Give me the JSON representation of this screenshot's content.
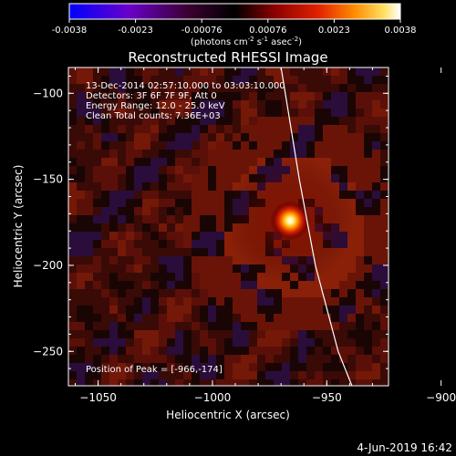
{
  "chart_data": {
    "type": "heatmap",
    "title": "Reconstructed RHESSI Image",
    "xlabel": "Heliocentric X (arcsec)",
    "ylabel": "Heliocentric Y (arcsec)",
    "xlim": [
      -1063,
      -923
    ],
    "ylim": [
      -270,
      -85
    ],
    "xticks": [
      -1050,
      -1000,
      -950,
      -900
    ],
    "yticks": [
      -100,
      -150,
      -200,
      -250
    ],
    "colorbar": {
      "ticks": [
        "-0.0038",
        "-0.0023",
        "-0.00076",
        "0.00076",
        "0.0023",
        "0.0038"
      ],
      "units": "(photons cm",
      "units_exp1": "-2",
      "units_mid": " s",
      "units_exp2": "-1",
      "units_mid2": " asec",
      "units_exp3": "-2",
      "units_end": ")",
      "range": [
        -0.0038,
        0.0038
      ]
    },
    "annotations": [
      "13-Dec-2014 02:57:10.000 to 03:03:10.000",
      "Detectors: 3F 6F 7F 9F, Att 0",
      "Energy Range: 12.0 - 25.0 keV",
      "Clean    Total counts: 7.36E+03"
    ],
    "peak_label": "Position of Peak = [-966,-174]",
    "peak": {
      "x": -966,
      "y": -174,
      "value": 0.0038
    },
    "limb": [
      [
        -970,
        -85
      ],
      [
        -962,
        -150
      ],
      [
        -955,
        -200
      ],
      [
        -945,
        -250
      ],
      [
        -939,
        -270
      ]
    ],
    "grid": false
  },
  "footer": {
    "date": "4-Jun-2019 16:42"
  }
}
